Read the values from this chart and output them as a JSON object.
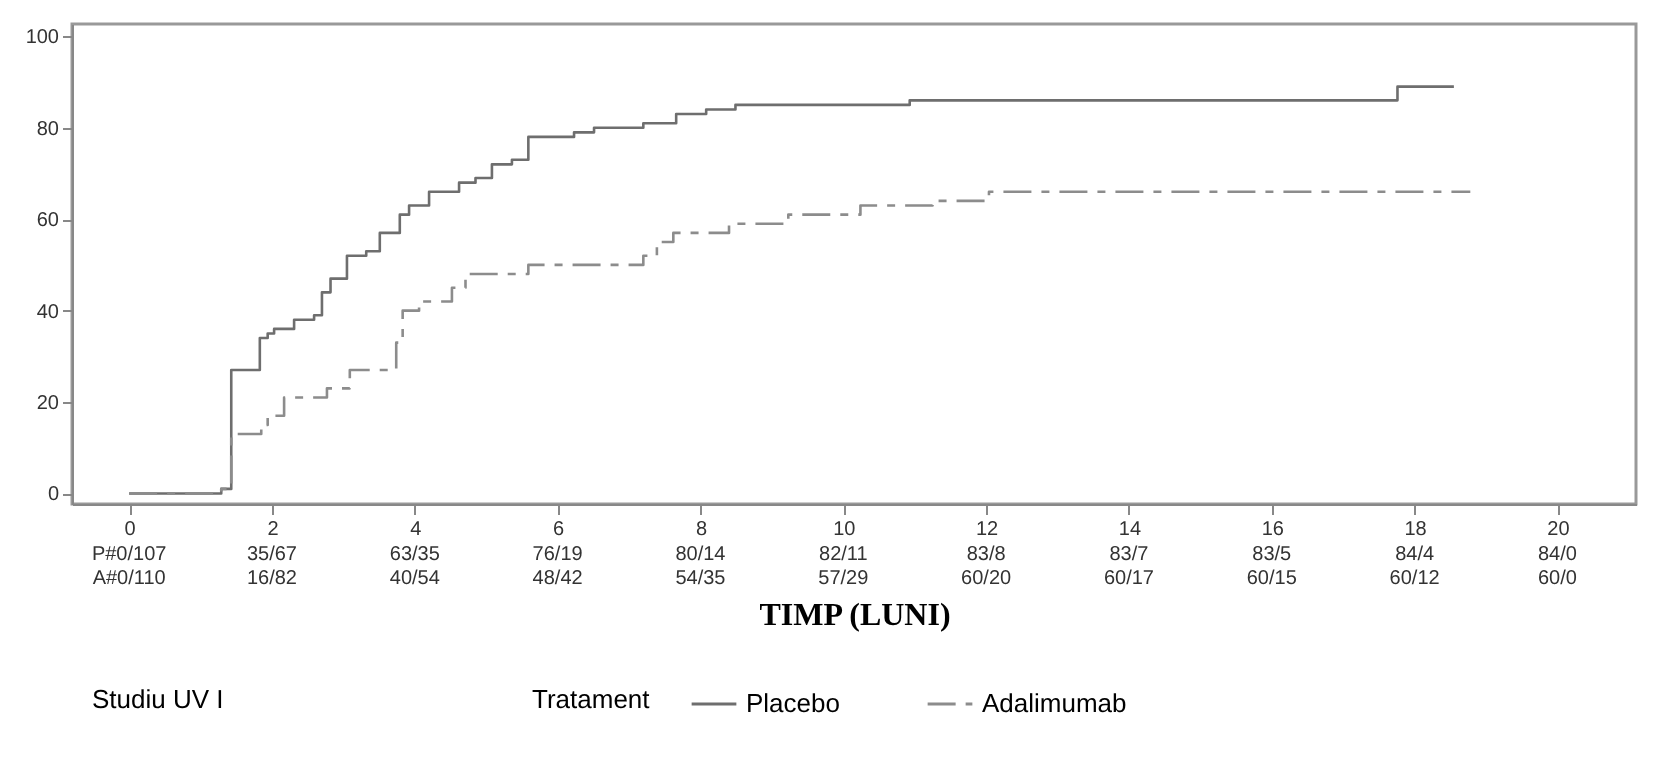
{
  "chart_data": {
    "type": "step",
    "xlabel": "TIMP (LUNI)",
    "legend_title": "Tratament",
    "annotations": [
      "Studiu UV I",
      "P#0/107",
      "35/67",
      "63/35",
      "76/19",
      "80/14",
      "82/11",
      "83/8",
      "83/7",
      "83/5",
      "84/4",
      "84/0",
      "A#0/110",
      "16/82",
      "40/54",
      "48/42",
      "54/35",
      "57/29",
      "60/20",
      "60/17",
      "60/15",
      "60/12",
      "60/0"
    ],
    "xlim": [
      -0.8,
      21.1
    ],
    "ylim": [
      -2.3,
      102.7
    ],
    "xticks": [
      0,
      2,
      4,
      6,
      8,
      10,
      12,
      14,
      16,
      18,
      20
    ],
    "yticks": [
      0,
      20,
      40,
      60,
      80,
      100
    ],
    "grid": false,
    "legend": "bottom",
    "series": [
      {
        "name": "Placebo",
        "color": "#6e6e6e",
        "line_style": "solid",
        "x": [
          0,
          1.29,
          1.43,
          1.83,
          1.94,
          2.03,
          2.31,
          2.59,
          2.7,
          2.82,
          3.05,
          3.32,
          3.51,
          3.79,
          3.92,
          4.2,
          4.62,
          4.85,
          5.08,
          5.36,
          5.59,
          6.23,
          6.51,
          7.2,
          7.66,
          8.08,
          8.49,
          10.93,
          17.76,
          18.55
        ],
        "values": [
          0,
          1,
          27,
          34,
          35,
          36,
          38,
          39,
          44,
          47,
          52,
          53,
          57,
          61,
          63,
          66,
          68,
          69,
          72,
          73,
          78,
          79,
          80,
          81,
          83,
          84,
          85,
          86,
          89,
          89
        ]
      },
      {
        "name": "Adalimumab",
        "color": "#8c8c8c",
        "line_style": "dashed",
        "x": [
          0,
          1.29,
          1.43,
          1.85,
          1.94,
          2.17,
          2.77,
          3.09,
          3.74,
          3.83,
          4.06,
          4.52,
          4.71,
          5.59,
          7.2,
          7.39,
          7.62,
          8.4,
          9.23,
          10.24,
          11.25,
          12.04,
          18.78
        ],
        "values": [
          0,
          1,
          13,
          15,
          17,
          21,
          23,
          27,
          33,
          40,
          42,
          45,
          48,
          50,
          52,
          55,
          57,
          59,
          61,
          63,
          64,
          66,
          66
        ]
      }
    ]
  }
}
